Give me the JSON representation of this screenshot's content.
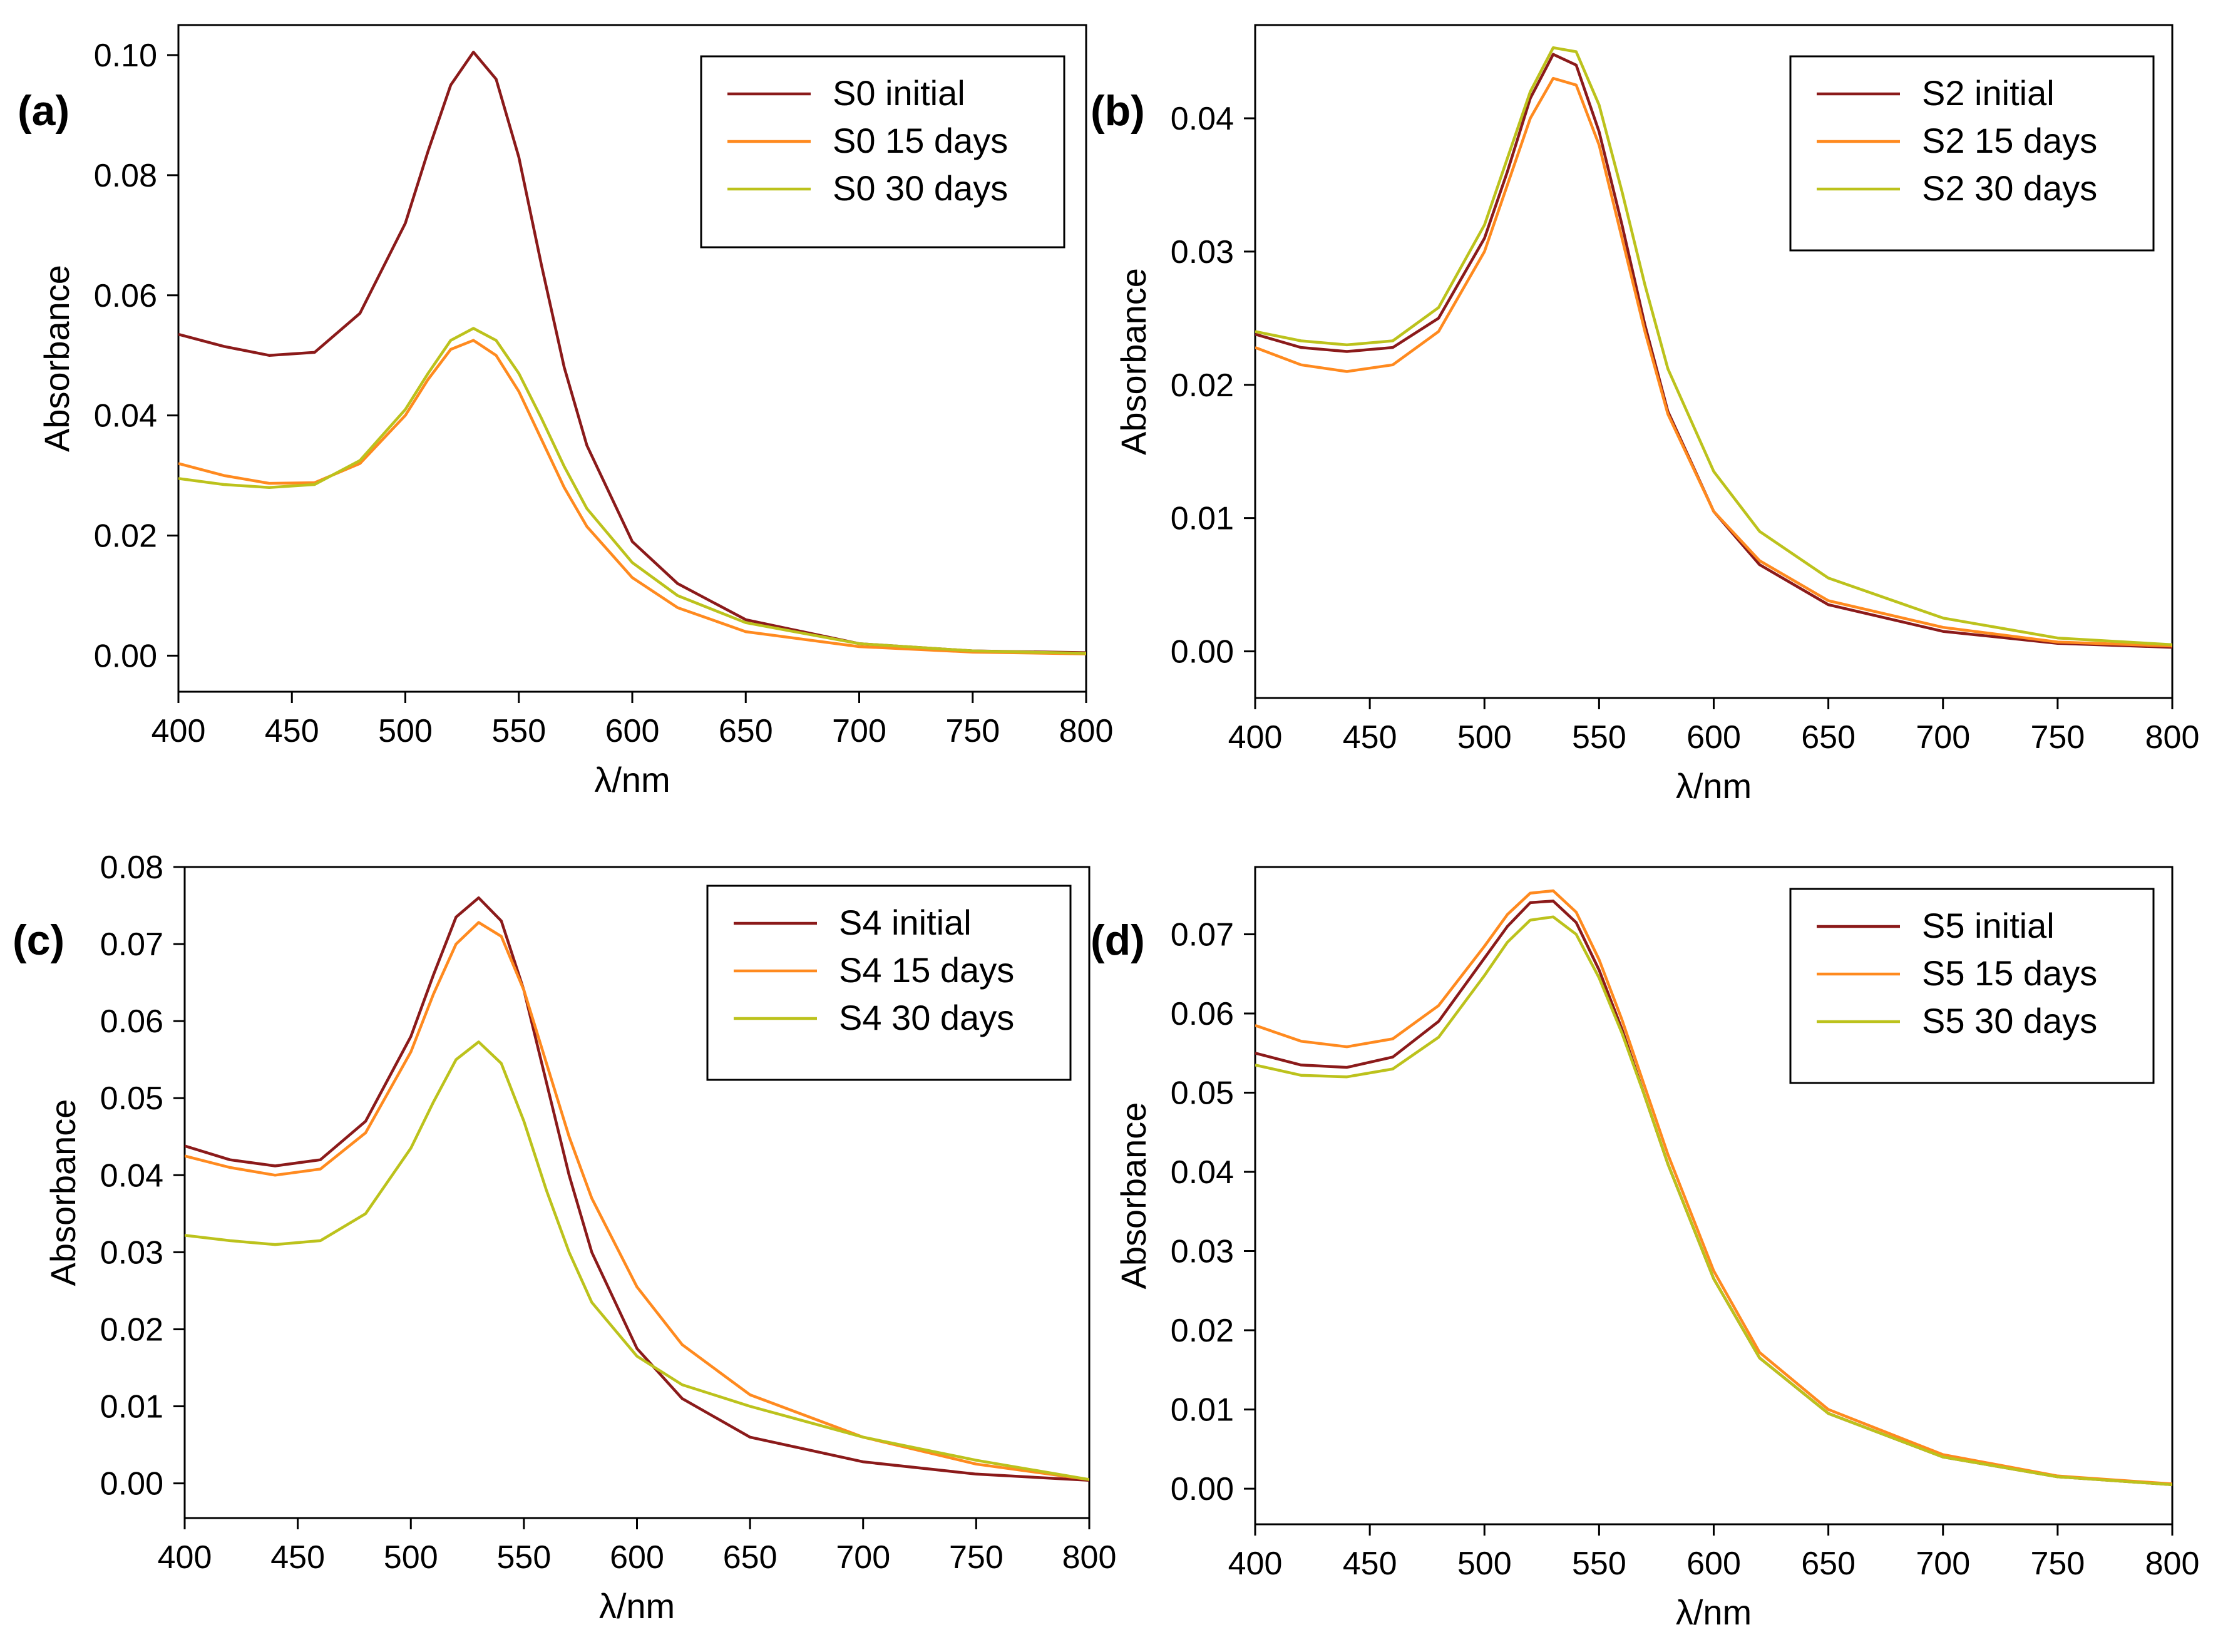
{
  "colors": {
    "initial": "#8b1a1a",
    "d15": "#ff8a1f",
    "d30": "#bcc21c"
  },
  "chart_data": [
    {
      "type": "line",
      "panel_label": "(a)",
      "xlabel": "λ/nm",
      "ylabel": "Absorbance",
      "xlim": [
        400,
        800
      ],
      "ylim": [
        -0.006,
        0.105
      ],
      "xticks": [
        400,
        450,
        500,
        550,
        600,
        650,
        700,
        750,
        800
      ],
      "yticks": [
        0.0,
        0.02,
        0.04,
        0.06,
        0.08,
        0.1
      ],
      "ytick_labels": [
        "0.00",
        "0.02",
        "0.04",
        "0.06",
        "0.08",
        "0.10"
      ],
      "legend_position": "top-right",
      "series": [
        {
          "name": "S0 initial",
          "color": "initial",
          "x": [
            400,
            420,
            440,
            460,
            480,
            500,
            510,
            520,
            530,
            540,
            550,
            560,
            570,
            580,
            600,
            620,
            650,
            700,
            750,
            800
          ],
          "y": [
            0.0535,
            0.0515,
            0.05,
            0.0505,
            0.057,
            0.072,
            0.084,
            0.095,
            0.1005,
            0.096,
            0.083,
            0.065,
            0.048,
            0.035,
            0.019,
            0.012,
            0.006,
            0.002,
            0.0008,
            0.0005
          ]
        },
        {
          "name": "S0 15 days",
          "color": "d15",
          "x": [
            400,
            420,
            440,
            460,
            480,
            500,
            510,
            520,
            530,
            540,
            550,
            560,
            570,
            580,
            600,
            620,
            650,
            700,
            750,
            800
          ],
          "y": [
            0.032,
            0.03,
            0.0287,
            0.0288,
            0.032,
            0.04,
            0.046,
            0.051,
            0.0525,
            0.05,
            0.044,
            0.036,
            0.028,
            0.0215,
            0.013,
            0.008,
            0.004,
            0.0015,
            0.0006,
            0.0003
          ]
        },
        {
          "name": "S0 30 days",
          "color": "d30",
          "x": [
            400,
            420,
            440,
            460,
            480,
            500,
            510,
            520,
            530,
            540,
            550,
            560,
            570,
            580,
            600,
            620,
            650,
            700,
            750,
            800
          ],
          "y": [
            0.0295,
            0.0285,
            0.028,
            0.0285,
            0.0325,
            0.041,
            0.047,
            0.0525,
            0.0545,
            0.0525,
            0.047,
            0.0395,
            0.0315,
            0.0245,
            0.0155,
            0.01,
            0.0055,
            0.002,
            0.0008,
            0.0004
          ]
        }
      ]
    },
    {
      "type": "line",
      "panel_label": "(b)",
      "xlabel": "λ/nm",
      "ylabel": "Absorbance",
      "xlim": [
        400,
        800
      ],
      "ylim": [
        -0.0035,
        0.047
      ],
      "xticks": [
        400,
        450,
        500,
        550,
        600,
        650,
        700,
        750,
        800
      ],
      "yticks": [
        0.0,
        0.01,
        0.02,
        0.03,
        0.04
      ],
      "ytick_labels": [
        "0.00",
        "0.01",
        "0.02",
        "0.03",
        "0.04"
      ],
      "legend_position": "top-right",
      "series": [
        {
          "name": "S2 initial",
          "color": "initial",
          "x": [
            400,
            420,
            440,
            460,
            480,
            500,
            510,
            520,
            530,
            540,
            550,
            560,
            570,
            580,
            600,
            620,
            650,
            700,
            750,
            800
          ],
          "y": [
            0.0238,
            0.0228,
            0.0225,
            0.0228,
            0.025,
            0.031,
            0.036,
            0.0415,
            0.0448,
            0.044,
            0.039,
            0.032,
            0.0245,
            0.018,
            0.0105,
            0.0065,
            0.0035,
            0.0015,
            0.0006,
            0.0003
          ]
        },
        {
          "name": "S2 15 days",
          "color": "d15",
          "x": [
            400,
            420,
            440,
            460,
            480,
            500,
            510,
            520,
            530,
            540,
            550,
            560,
            570,
            580,
            600,
            620,
            650,
            700,
            750,
            800
          ],
          "y": [
            0.0228,
            0.0215,
            0.021,
            0.0215,
            0.024,
            0.03,
            0.035,
            0.04,
            0.043,
            0.0425,
            0.038,
            0.031,
            0.024,
            0.0178,
            0.0105,
            0.0068,
            0.0038,
            0.0018,
            0.0007,
            0.0004
          ]
        },
        {
          "name": "S2 30 days",
          "color": "d30",
          "x": [
            400,
            420,
            440,
            460,
            480,
            500,
            510,
            520,
            530,
            540,
            550,
            560,
            570,
            580,
            600,
            620,
            650,
            700,
            750,
            800
          ],
          "y": [
            0.024,
            0.0233,
            0.023,
            0.0233,
            0.0258,
            0.032,
            0.037,
            0.042,
            0.0453,
            0.045,
            0.041,
            0.0345,
            0.0275,
            0.0212,
            0.0135,
            0.009,
            0.0055,
            0.0025,
            0.001,
            0.0005
          ]
        }
      ]
    },
    {
      "type": "line",
      "panel_label": "(c)",
      "xlabel": "λ/nm",
      "ylabel": "Absorbance",
      "xlim": [
        400,
        800
      ],
      "ylim": [
        -0.0045,
        0.08
      ],
      "xticks": [
        400,
        450,
        500,
        550,
        600,
        650,
        700,
        750,
        800
      ],
      "yticks": [
        0.0,
        0.01,
        0.02,
        0.03,
        0.04,
        0.05,
        0.06,
        0.07,
        0.08
      ],
      "ytick_labels": [
        "0.00",
        "0.01",
        "0.02",
        "0.03",
        "0.04",
        "0.05",
        "0.06",
        "0.07",
        "0.08"
      ],
      "legend_position": "top-right",
      "series": [
        {
          "name": "S4 initial",
          "color": "initial",
          "x": [
            400,
            420,
            440,
            460,
            480,
            500,
            510,
            520,
            530,
            540,
            550,
            560,
            570,
            580,
            600,
            620,
            650,
            700,
            750,
            800
          ],
          "y": [
            0.0438,
            0.042,
            0.0412,
            0.042,
            0.047,
            0.058,
            0.066,
            0.0735,
            0.076,
            0.073,
            0.064,
            0.052,
            0.04,
            0.03,
            0.0175,
            0.011,
            0.006,
            0.0028,
            0.0012,
            0.0004
          ]
        },
        {
          "name": "S4 15 days",
          "color": "d15",
          "x": [
            400,
            420,
            440,
            460,
            480,
            500,
            510,
            520,
            530,
            540,
            550,
            560,
            570,
            580,
            600,
            620,
            650,
            700,
            750,
            800
          ],
          "y": [
            0.0425,
            0.041,
            0.04,
            0.0408,
            0.0455,
            0.056,
            0.0635,
            0.07,
            0.0728,
            0.071,
            0.064,
            0.0545,
            0.045,
            0.037,
            0.0255,
            0.018,
            0.0115,
            0.006,
            0.0025,
            0.0005
          ]
        },
        {
          "name": "S4 30 days",
          "color": "d30",
          "x": [
            400,
            420,
            440,
            460,
            480,
            500,
            510,
            520,
            530,
            540,
            550,
            560,
            570,
            580,
            600,
            620,
            650,
            700,
            750,
            800
          ],
          "y": [
            0.0322,
            0.0315,
            0.031,
            0.0315,
            0.035,
            0.0435,
            0.0495,
            0.055,
            0.0573,
            0.0545,
            0.047,
            0.038,
            0.03,
            0.0235,
            0.0165,
            0.0128,
            0.01,
            0.006,
            0.003,
            0.0005
          ]
        }
      ]
    },
    {
      "type": "line",
      "panel_label": "(d)",
      "xlabel": "λ/nm",
      "ylabel": "Absorbance",
      "xlim": [
        400,
        800
      ],
      "ylim": [
        -0.0045,
        0.0785
      ],
      "xticks": [
        400,
        450,
        500,
        550,
        600,
        650,
        700,
        750,
        800
      ],
      "yticks": [
        0.0,
        0.01,
        0.02,
        0.03,
        0.04,
        0.05,
        0.06,
        0.07
      ],
      "ytick_labels": [
        "0.00",
        "0.01",
        "0.02",
        "0.03",
        "0.04",
        "0.05",
        "0.06",
        "0.07"
      ],
      "legend_position": "top-right",
      "series": [
        {
          "name": "S5 initial",
          "color": "initial",
          "x": [
            400,
            420,
            440,
            460,
            480,
            500,
            510,
            520,
            530,
            540,
            550,
            560,
            570,
            580,
            600,
            620,
            650,
            700,
            750,
            800
          ],
          "y": [
            0.055,
            0.0535,
            0.0532,
            0.0545,
            0.059,
            0.067,
            0.071,
            0.074,
            0.0742,
            0.0715,
            0.0655,
            0.058,
            0.0495,
            0.041,
            0.0265,
            0.0165,
            0.0095,
            0.004,
            0.0015,
            0.0005
          ]
        },
        {
          "name": "S5 15 days",
          "color": "d15",
          "x": [
            400,
            420,
            440,
            460,
            480,
            500,
            510,
            520,
            530,
            540,
            550,
            560,
            570,
            580,
            600,
            620,
            650,
            700,
            750,
            800
          ],
          "y": [
            0.0585,
            0.0565,
            0.0558,
            0.0568,
            0.061,
            0.0685,
            0.0725,
            0.0752,
            0.0755,
            0.0728,
            0.0668,
            0.0592,
            0.0507,
            0.0422,
            0.0275,
            0.0172,
            0.01,
            0.0043,
            0.0016,
            0.0006
          ]
        },
        {
          "name": "S5 30 days",
          "color": "d30",
          "x": [
            400,
            420,
            440,
            460,
            480,
            500,
            510,
            520,
            530,
            540,
            550,
            560,
            570,
            580,
            600,
            620,
            650,
            700,
            750,
            800
          ],
          "y": [
            0.0535,
            0.0522,
            0.052,
            0.053,
            0.057,
            0.0648,
            0.069,
            0.0718,
            0.0722,
            0.07,
            0.0645,
            0.0575,
            0.0495,
            0.041,
            0.0265,
            0.0165,
            0.0095,
            0.004,
            0.0015,
            0.0005
          ]
        }
      ]
    }
  ]
}
